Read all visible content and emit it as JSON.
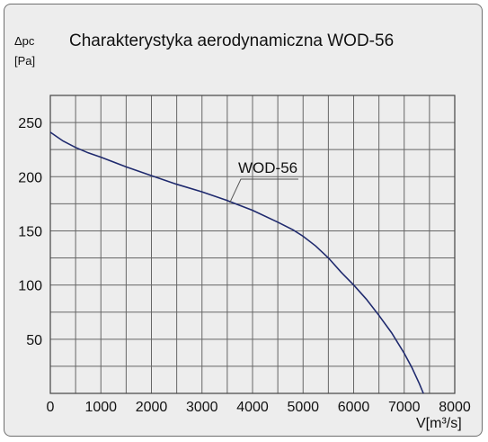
{
  "chart_data": {
    "type": "line",
    "title": "Charakterystyka aerodynamiczna WOD-56",
    "ylabel_line1": "Δpc",
    "ylabel_line2": "[Pa]",
    "xlabel": "V[m³/s]",
    "xlim": [
      0,
      8000
    ],
    "ylim": [
      0,
      275
    ],
    "xticks": [
      0,
      1000,
      2000,
      3000,
      4000,
      5000,
      6000,
      7000,
      8000
    ],
    "yticks": [
      50,
      100,
      150,
      200,
      250
    ],
    "grid": true,
    "series": [
      {
        "name": "WOD-56",
        "color": "#1f2a6e",
        "x": [
          0,
          250,
          500,
          750,
          1000,
          1500,
          2000,
          2500,
          3000,
          3500,
          4000,
          4500,
          4800,
          5000,
          5250,
          5500,
          5750,
          6000,
          6250,
          6500,
          6750,
          7000,
          7150,
          7300,
          7380
        ],
        "y": [
          241,
          233,
          227,
          222,
          218,
          209,
          201,
          193,
          186,
          178,
          169,
          158,
          151,
          145,
          136,
          125,
          112,
          100,
          87,
          72,
          56,
          37,
          24,
          9,
          0
        ]
      }
    ]
  }
}
